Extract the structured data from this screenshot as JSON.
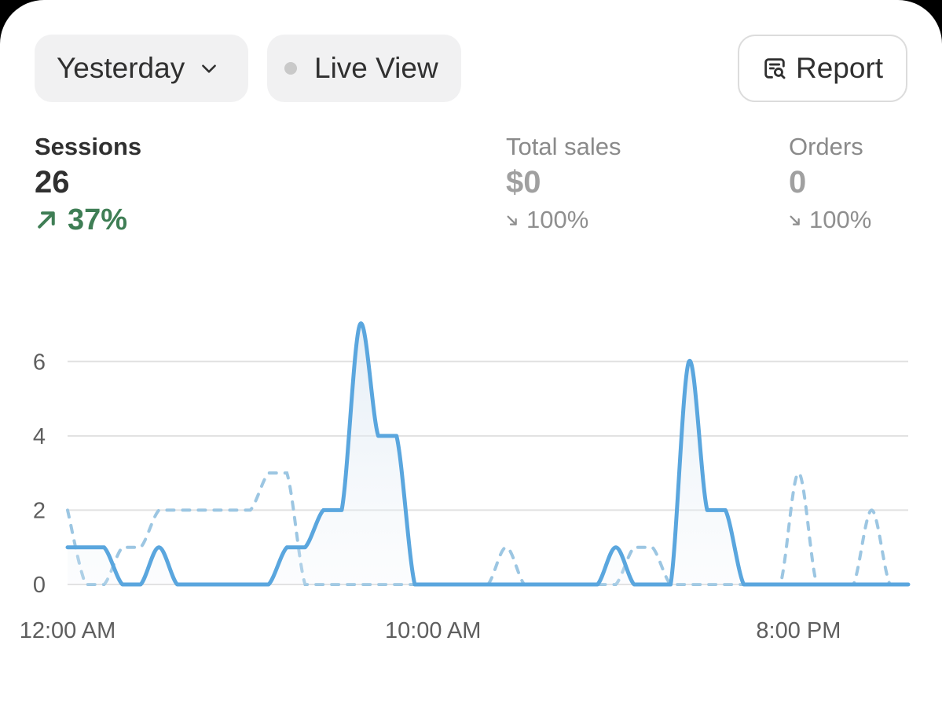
{
  "filters": {
    "date_range_label": "Yesterday",
    "live_view_label": "Live View",
    "report_label": "Report"
  },
  "metrics": [
    {
      "label": "Sessions",
      "value": "26",
      "change": "37%",
      "direction": "up"
    },
    {
      "label": "Total sales",
      "value": "$0",
      "change": "100%",
      "direction": "down"
    },
    {
      "label": "Orders",
      "value": "0",
      "change": "100%",
      "direction": "down"
    }
  ],
  "colors": {
    "series_current": "#5aa6de",
    "series_previous": "#9cc6e2",
    "positive": "#3f7e55",
    "muted": "#8f8f8f"
  },
  "icons": {
    "date_dropdown": "chevron-down-icon",
    "live_indicator": "status-dot-icon",
    "report": "report-search-icon",
    "change_up": "arrow-up-right-icon",
    "change_down": "arrow-down-right-icon"
  },
  "chart_data": {
    "type": "line",
    "x_tick_labels": [
      "12:00 AM",
      "10:00 AM",
      "8:00 PM"
    ],
    "y_ticks": [
      0,
      2,
      4,
      6
    ],
    "ylim": [
      0,
      7
    ],
    "grid": true,
    "x": [
      0,
      0.5,
      1,
      1.5,
      2,
      2.5,
      3,
      3.5,
      4,
      4.5,
      5,
      5.5,
      6,
      6.5,
      7,
      7.5,
      8,
      8.5,
      9,
      9.5,
      10,
      10.5,
      11,
      11.5,
      12,
      12.5,
      13,
      13.5,
      14,
      14.5,
      15,
      15.5,
      16,
      16.5,
      17,
      17.5,
      18,
      18.5,
      19,
      19.5,
      20,
      20.5,
      21,
      21.5,
      22,
      22.5,
      23
    ],
    "series": [
      {
        "values": [
          1,
          1,
          1,
          0,
          0,
          1,
          0,
          0,
          0,
          0,
          0,
          0,
          1,
          1,
          2,
          2,
          7,
          4,
          4,
          0,
          0,
          0,
          0,
          0,
          0,
          0,
          0,
          0,
          0,
          0,
          1,
          0,
          0,
          0,
          6,
          2,
          2,
          0,
          0,
          0,
          0,
          0,
          0,
          0,
          0,
          0,
          0
        ]
      },
      {
        "values": [
          2,
          0,
          0,
          1,
          1,
          2,
          2,
          2,
          2,
          2,
          2,
          3,
          3,
          0,
          0,
          0,
          0,
          0,
          0,
          0,
          0,
          0,
          0,
          0,
          1,
          0,
          0,
          0,
          0,
          0,
          0,
          1,
          1,
          0,
          0,
          0,
          0,
          0,
          0,
          0,
          3,
          0,
          0,
          0,
          2,
          0,
          0
        ]
      }
    ]
  }
}
